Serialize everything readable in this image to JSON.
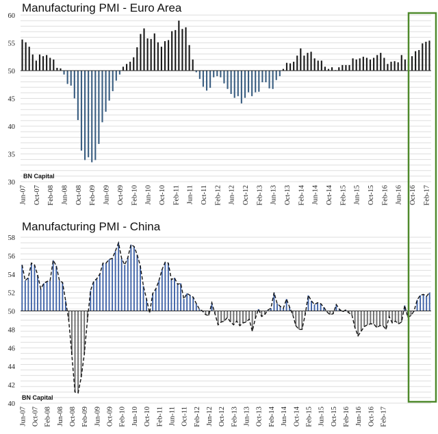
{
  "chart_data": [
    {
      "type": "bar",
      "title": "Manufacturing PMI - Euro Area",
      "source": "BN Capital",
      "baseline": 50,
      "ylim": [
        30,
        60
      ],
      "yticks": [
        30,
        35,
        40,
        45,
        50,
        55,
        60
      ],
      "grid": true,
      "xtick_labels": [
        "Jun-07",
        "Oct-07",
        "Feb-08",
        "Jun-08",
        "Oct-08",
        "Feb-09",
        "Jun-09",
        "Oct-09",
        "Feb-10",
        "Jun-10",
        "Oct-10",
        "Feb-11",
        "Jun-11",
        "Oct-11",
        "Feb-12",
        "Jun-12",
        "Oct-12",
        "Feb-13",
        "Jun-13",
        "Oct-13",
        "Feb-14",
        "Jun-14",
        "Oct-14",
        "Feb-15",
        "Jun-15",
        "Oct-15",
        "Feb-16",
        "Jun-16",
        "Oct-16",
        "Feb-17"
      ],
      "colors": {
        "above": "#1a1a1a",
        "below": "#3b5f82"
      },
      "values": [
        55.6,
        55.1,
        54.3,
        52.9,
        51.8,
        52.9,
        52.6,
        52.8,
        52.3,
        52.0,
        50.5,
        50.4,
        49.3,
        47.6,
        47.3,
        45.0,
        41.1,
        35.6,
        33.9,
        34.4,
        33.5,
        33.9,
        36.8,
        40.7,
        42.6,
        44.6,
        46.3,
        48.2,
        49.3,
        50.7,
        51.2,
        51.6,
        52.4,
        54.2,
        56.6,
        57.6,
        55.8,
        55.7,
        56.7,
        55.1,
        54.3,
        55.3,
        55.5,
        57.1,
        57.3,
        59.0,
        57.5,
        57.8,
        54.6,
        52.0,
        49.7,
        48.5,
        47.1,
        46.4,
        46.9,
        48.8,
        49.0,
        48.8,
        47.7,
        46.7,
        45.8,
        45.1,
        45.4,
        44.1,
        45.1,
        46.1,
        45.4,
        46.1,
        46.2,
        47.9,
        47.9,
        46.8,
        46.7,
        48.3,
        49.0,
        50.3,
        51.4,
        51.3,
        51.6,
        52.7,
        54.0,
        52.7,
        53.2,
        53.4,
        52.2,
        51.8,
        51.8,
        50.7,
        50.3,
        50.6,
        50.1,
        50.6,
        51.0,
        51.0,
        51.0,
        52.2,
        52.0,
        52.2,
        52.5,
        52.3,
        52.0,
        52.3,
        52.8,
        53.2,
        52.3,
        51.2,
        51.6,
        51.7,
        51.5,
        52.8,
        52.0,
        51.7,
        52.6,
        53.5,
        53.7,
        54.9,
        55.2,
        55.4
      ]
    },
    {
      "type": "bar",
      "title": "Manufacturing PMI - China",
      "source": "BN Capital",
      "baseline": 50,
      "ylim": [
        40,
        58
      ],
      "yticks": [
        40,
        42,
        44,
        46,
        48,
        50,
        52,
        54,
        56,
        58
      ],
      "grid": true,
      "xtick_labels": [
        "Jun-07",
        "Oct-07",
        "Feb-08",
        "Jun-08",
        "Oct-08",
        "Feb-09",
        "Jun-09",
        "Oct-09",
        "Feb-10",
        "Jun-10",
        "Oct-10",
        "Feb-11",
        "Jun-11",
        "Oct-11",
        "Feb-12",
        "Jun-12",
        "Oct-12",
        "Feb-13",
        "Jun-13",
        "Oct-13",
        "Feb-14",
        "Jun-14",
        "Oct-14",
        "Feb-15",
        "Jun-15",
        "Oct-15",
        "Feb-16",
        "Jun-16",
        "Oct-16",
        "Feb-17"
      ],
      "colors": {
        "above": "#3f63a8",
        "below": "#6e6e6e",
        "line": "#111111"
      },
      "series": [
        {
          "name": "PMI",
          "values": [
            55.0,
            53.3,
            53.6,
            55.2,
            55.0,
            53.9,
            52.4,
            53.0,
            53.2,
            53.3,
            55.5,
            54.9,
            53.3,
            53.1,
            51.1,
            49.0,
            45.2,
            41.2,
            41.1,
            42.8,
            45.3,
            49.0,
            52.2,
            53.2,
            53.5,
            54.0,
            55.2,
            55.2,
            55.6,
            55.7,
            56.5,
            57.4,
            55.7,
            55.0,
            55.8,
            57.2,
            57.0,
            56.1,
            54.9,
            52.7,
            51.3,
            49.8,
            51.9,
            52.4,
            53.3,
            54.5,
            55.3,
            55.2,
            53.4,
            53.6,
            52.9,
            53.0,
            51.3,
            51.9,
            51.7,
            51.5,
            50.8,
            50.2,
            50.0,
            49.6,
            49.5,
            50.9,
            49.7,
            48.5,
            48.8,
            48.9,
            49.3,
            48.8,
            48.5,
            48.9,
            48.4,
            48.7,
            48.8,
            49.1,
            47.8,
            49.2,
            50.2,
            49.4,
            49.6,
            50.1,
            50.3,
            52.0,
            50.8,
            50.5,
            50.3,
            51.3,
            50.4,
            49.6,
            48.4,
            48.0,
            48.0,
            49.6,
            51.7,
            51.1,
            50.7,
            50.9,
            50.8,
            50.4,
            49.9,
            49.6,
            49.7,
            50.7,
            50.2,
            49.9,
            50.1,
            49.8,
            49.6,
            48.2,
            47.3,
            47.8,
            48.3,
            48.5,
            48.6,
            48.6,
            48.2,
            48.4,
            48.4,
            48.0,
            49.4,
            48.7,
            48.9,
            48.6,
            48.8,
            50.6,
            49.3,
            49.5,
            50.0,
            51.2,
            51.7,
            51.8,
            51.6,
            52.0
          ]
        }
      ]
    }
  ]
}
